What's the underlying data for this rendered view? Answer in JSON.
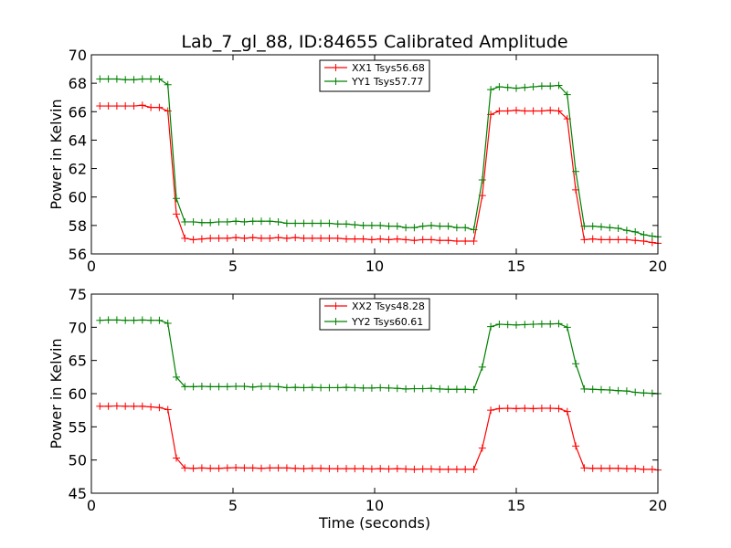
{
  "chart_data": [
    {
      "type": "line",
      "title": "Lab_7_gl_88, ID:84655 Calibrated Amplitude",
      "xlabel": "",
      "ylabel": "Power in Kelvin",
      "xlim": [
        0,
        20
      ],
      "ylim": [
        56,
        70
      ],
      "xticks": [
        0,
        5,
        10,
        15,
        20
      ],
      "yticks": [
        56,
        58,
        60,
        62,
        64,
        66,
        68,
        70
      ],
      "grid": false,
      "legend_position": "top-center",
      "x": [
        0.3,
        0.6,
        0.9,
        1.2,
        1.5,
        1.8,
        2.1,
        2.4,
        2.7,
        3.0,
        3.3,
        3.6,
        3.9,
        4.2,
        4.5,
        4.8,
        5.1,
        5.4,
        5.7,
        6.0,
        6.3,
        6.6,
        6.9,
        7.2,
        7.5,
        7.8,
        8.1,
        8.4,
        8.7,
        9.0,
        9.3,
        9.6,
        9.9,
        10.2,
        10.5,
        10.8,
        11.1,
        11.4,
        11.7,
        12.0,
        12.3,
        12.6,
        12.9,
        13.2,
        13.5,
        13.8,
        14.1,
        14.4,
        14.7,
        15.0,
        15.3,
        15.6,
        15.9,
        16.2,
        16.5,
        16.8,
        17.1,
        17.4,
        17.7,
        18.0,
        18.3,
        18.6,
        18.9,
        19.2,
        19.5,
        19.8,
        20.0
      ],
      "series": [
        {
          "name": "XX1 Tsys56.68",
          "color": "#ff0000",
          "values": [
            66.4,
            66.4,
            66.4,
            66.4,
            66.4,
            66.45,
            66.3,
            66.3,
            66.05,
            58.8,
            57.1,
            57.0,
            57.05,
            57.1,
            57.1,
            57.1,
            57.15,
            57.1,
            57.15,
            57.1,
            57.1,
            57.15,
            57.1,
            57.15,
            57.1,
            57.1,
            57.1,
            57.1,
            57.1,
            57.05,
            57.05,
            57.05,
            57.0,
            57.05,
            57.0,
            57.05,
            57.0,
            56.95,
            57.0,
            57.0,
            56.95,
            56.95,
            56.9,
            56.9,
            56.9,
            60.1,
            65.8,
            66.05,
            66.05,
            66.1,
            66.05,
            66.05,
            66.05,
            66.1,
            66.05,
            65.5,
            60.5,
            57.0,
            57.05,
            57.0,
            57.0,
            57.0,
            57.0,
            56.95,
            56.9,
            56.8,
            56.75
          ],
          "markers": "+"
        },
        {
          "name": "YY1 Tsys57.77",
          "color": "#008000",
          "values": [
            68.3,
            68.3,
            68.3,
            68.25,
            68.25,
            68.3,
            68.3,
            68.3,
            67.9,
            59.9,
            58.25,
            58.25,
            58.2,
            58.2,
            58.25,
            58.25,
            58.3,
            58.25,
            58.3,
            58.3,
            58.3,
            58.25,
            58.15,
            58.15,
            58.15,
            58.15,
            58.15,
            58.15,
            58.1,
            58.1,
            58.05,
            58.0,
            58.0,
            58.0,
            57.95,
            57.95,
            57.85,
            57.85,
            57.95,
            58.0,
            57.95,
            57.95,
            57.85,
            57.85,
            57.7,
            61.2,
            67.55,
            67.75,
            67.7,
            67.65,
            67.7,
            67.75,
            67.8,
            67.8,
            67.85,
            67.2,
            61.8,
            57.95,
            57.95,
            57.9,
            57.85,
            57.8,
            57.65,
            57.55,
            57.35,
            57.25,
            57.2
          ],
          "markers": "+"
        }
      ]
    },
    {
      "type": "line",
      "title": "",
      "xlabel": "Time (seconds)",
      "ylabel": "Power in Kelvin",
      "xlim": [
        0,
        20
      ],
      "ylim": [
        45,
        75
      ],
      "xticks": [
        0,
        5,
        10,
        15,
        20
      ],
      "yticks": [
        45,
        50,
        55,
        60,
        65,
        70,
        75
      ],
      "grid": false,
      "legend_position": "top-center",
      "x": [
        0.3,
        0.6,
        0.9,
        1.2,
        1.5,
        1.8,
        2.1,
        2.4,
        2.7,
        3.0,
        3.3,
        3.6,
        3.9,
        4.2,
        4.5,
        4.8,
        5.1,
        5.4,
        5.7,
        6.0,
        6.3,
        6.6,
        6.9,
        7.2,
        7.5,
        7.8,
        8.1,
        8.4,
        8.7,
        9.0,
        9.3,
        9.6,
        9.9,
        10.2,
        10.5,
        10.8,
        11.1,
        11.4,
        11.7,
        12.0,
        12.3,
        12.6,
        12.9,
        13.2,
        13.5,
        13.8,
        14.1,
        14.4,
        14.7,
        15.0,
        15.3,
        15.6,
        15.9,
        16.2,
        16.5,
        16.8,
        17.1,
        17.4,
        17.7,
        18.0,
        18.3,
        18.6,
        18.9,
        19.2,
        19.5,
        19.8,
        20.0
      ],
      "series": [
        {
          "name": "XX2 Tsys48.28",
          "color": "#ff0000",
          "values": [
            58.1,
            58.1,
            58.15,
            58.1,
            58.1,
            58.1,
            58.0,
            57.9,
            57.6,
            50.3,
            48.8,
            48.75,
            48.8,
            48.75,
            48.75,
            48.8,
            48.85,
            48.8,
            48.8,
            48.75,
            48.8,
            48.8,
            48.8,
            48.75,
            48.7,
            48.75,
            48.75,
            48.7,
            48.7,
            48.7,
            48.7,
            48.7,
            48.65,
            48.7,
            48.65,
            48.7,
            48.65,
            48.6,
            48.65,
            48.65,
            48.6,
            48.6,
            48.6,
            48.6,
            48.6,
            51.8,
            57.5,
            57.75,
            57.8,
            57.75,
            57.8,
            57.75,
            57.8,
            57.8,
            57.75,
            57.3,
            52.1,
            48.8,
            48.75,
            48.75,
            48.75,
            48.75,
            48.7,
            48.7,
            48.6,
            48.6,
            48.5
          ],
          "markers": "+"
        },
        {
          "name": "YY2 Tsys60.61",
          "color": "#008000",
          "values": [
            71.05,
            71.1,
            71.1,
            71.05,
            71.05,
            71.1,
            71.05,
            71.05,
            70.6,
            62.5,
            61.05,
            61.05,
            61.1,
            61.05,
            61.05,
            61.05,
            61.1,
            61.1,
            61.0,
            61.1,
            61.1,
            61.05,
            60.9,
            60.95,
            60.9,
            60.95,
            60.9,
            60.9,
            60.9,
            60.95,
            60.9,
            60.85,
            60.85,
            60.9,
            60.85,
            60.8,
            60.7,
            60.75,
            60.75,
            60.8,
            60.7,
            60.65,
            60.65,
            60.65,
            60.6,
            64.0,
            70.1,
            70.45,
            70.4,
            70.35,
            70.4,
            70.45,
            70.5,
            70.5,
            70.55,
            70.0,
            64.5,
            60.7,
            60.65,
            60.6,
            60.55,
            60.45,
            60.4,
            60.2,
            60.1,
            60.05,
            60.0
          ],
          "markers": "+"
        }
      ]
    }
  ]
}
